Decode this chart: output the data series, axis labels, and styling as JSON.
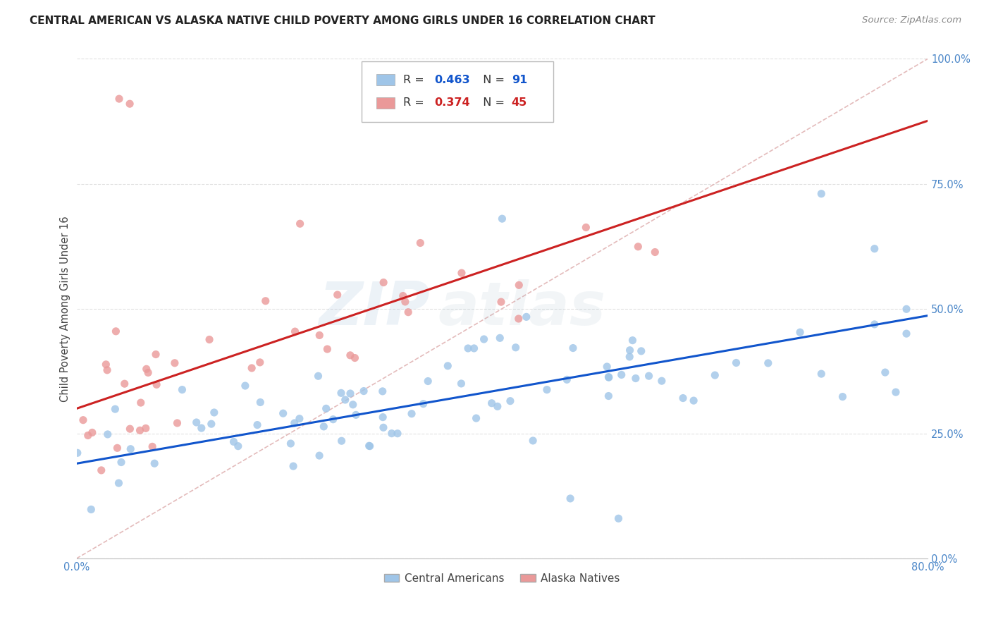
{
  "title": "CENTRAL AMERICAN VS ALASKA NATIVE CHILD POVERTY AMONG GIRLS UNDER 16 CORRELATION CHART",
  "source": "Source: ZipAtlas.com",
  "ylabel": "Child Poverty Among Girls Under 16",
  "ytick_labels": [
    "0.0%",
    "25.0%",
    "50.0%",
    "75.0%",
    "100.0%"
  ],
  "ytick_values": [
    0.0,
    0.25,
    0.5,
    0.75,
    1.0
  ],
  "xlim": [
    0.0,
    0.8
  ],
  "ylim": [
    0.0,
    1.0
  ],
  "legend_blue_label": "Central Americans",
  "legend_pink_label": "Alaska Natives",
  "R_blue": 0.463,
  "N_blue": 91,
  "R_pink": 0.374,
  "N_pink": 45,
  "blue_color": "#9fc5e8",
  "pink_color": "#ea9999",
  "trend_blue_color": "#1155cc",
  "trend_pink_color": "#cc2222",
  "diagonal_color": "#ddaaaa",
  "grid_color": "#e0e0e0",
  "background_color": "#ffffff",
  "title_color": "#222222",
  "source_color": "#888888",
  "tick_color": "#4a86c8",
  "title_fontsize": 11.0,
  "tick_fontsize": 10.5,
  "ylabel_fontsize": 10.5,
  "watermark_zip": "ZIP",
  "watermark_atlas": "atlas",
  "watermark_alpha": 0.13
}
